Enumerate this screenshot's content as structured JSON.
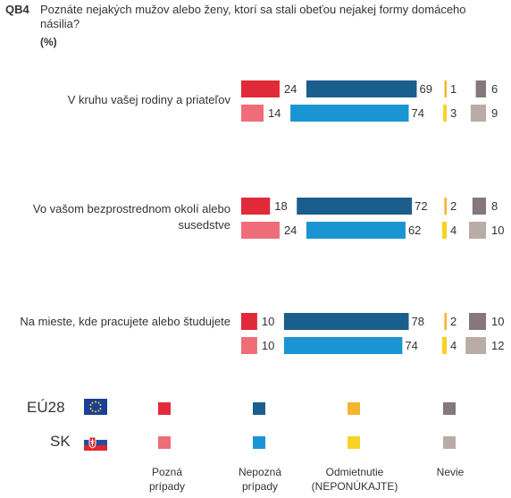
{
  "question": {
    "code": "QB4",
    "text": "Poznáte nejakých mužov alebo ženy, ktorí sa stali obeťou nejakej formy domáceho násilia?",
    "unit": "(%)"
  },
  "colors": {
    "eu_known": "#e02a3a",
    "eu_unknown": "#1a5e8e",
    "eu_refusal": "#f5b52e",
    "eu_dontknow": "#85777d",
    "sk_known": "#ef6d78",
    "sk_unknown": "#1a95d3",
    "sk_refusal": "#f9d324",
    "sk_dontknow": "#b9aca6"
  },
  "chart_data": {
    "type": "bar",
    "categories": [
      "V kruhu vašej rodiny a priateľov",
      "Vo vašom bezprostrednom okolí alebo susedstve",
      "Na mieste, kde pracujete alebo študujete"
    ],
    "groups": [
      "EÚ28",
      "SK"
    ],
    "series": [
      {
        "name": "Pozná prípady",
        "EU28": [
          24,
          18,
          10
        ],
        "SK": [
          14,
          24,
          10
        ]
      },
      {
        "name": "Nepozná prípady",
        "EU28": [
          69,
          72,
          78
        ],
        "SK": [
          74,
          62,
          74
        ]
      },
      {
        "name": "Odmietnutie (NEPONÚKAJTE)",
        "EU28": [
          1,
          2,
          2
        ],
        "SK": [
          3,
          4,
          4
        ]
      },
      {
        "name": "Nevie",
        "EU28": [
          6,
          8,
          10
        ],
        "SK": [
          9,
          10,
          12
        ]
      }
    ]
  },
  "legend": {
    "rows": [
      "EÚ28",
      "SK"
    ],
    "labels": [
      "Pozná\nprípady",
      "Nepozná\nprípady",
      "Odmietnutie\n(NEPONÚKAJTE)",
      "Nevie"
    ]
  }
}
